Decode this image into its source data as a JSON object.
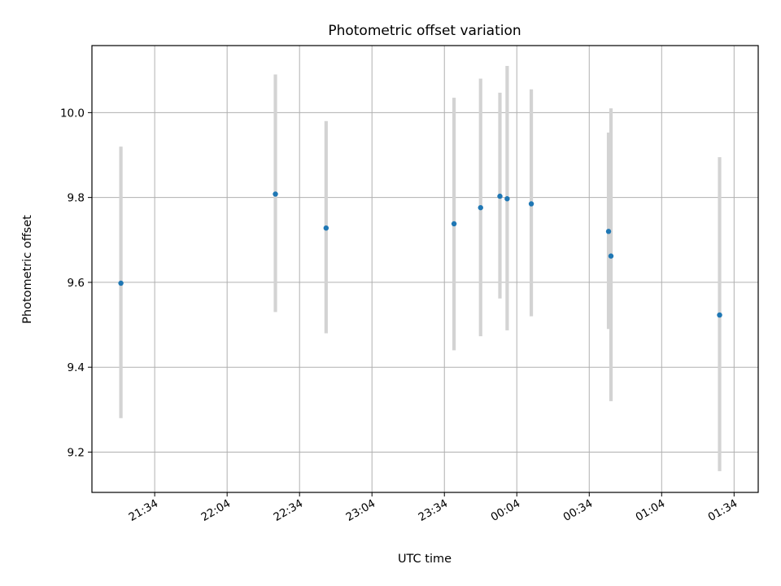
{
  "chart_data": {
    "type": "scatter",
    "title": "Photometric offset variation",
    "xlabel": "UTC time",
    "ylabel": "Photometric offset",
    "x_is_time": true,
    "xlim": [
      "21:08",
      "01:44"
    ],
    "ylim": [
      9.105,
      10.158
    ],
    "x_ticks": [
      "21:34",
      "22:04",
      "22:34",
      "23:04",
      "23:34",
      "00:04",
      "00:34",
      "01:04",
      "01:34"
    ],
    "y_ticks": [
      9.2,
      9.4,
      9.6,
      9.8,
      10.0
    ],
    "y_tick_labels": [
      "9.2",
      "9.4",
      "9.6",
      "9.8",
      "10.0"
    ],
    "grid": true,
    "series": [
      {
        "points": [
          {
            "x": "21:20",
            "y": 9.598,
            "ymin": 9.28,
            "ymax": 9.92
          },
          {
            "x": "22:24",
            "y": 9.808,
            "ymin": 9.53,
            "ymax": 10.09
          },
          {
            "x": "22:45",
            "y": 9.728,
            "ymin": 9.48,
            "ymax": 9.98
          },
          {
            "x": "23:38",
            "y": 9.738,
            "ymin": 9.44,
            "ymax": 10.035
          },
          {
            "x": "23:49",
            "y": 9.776,
            "ymin": 9.473,
            "ymax": 10.08
          },
          {
            "x": "23:57",
            "y": 9.803,
            "ymin": 9.562,
            "ymax": 10.047
          },
          {
            "x": "00:00",
            "y": 9.797,
            "ymin": 9.487,
            "ymax": 10.11
          },
          {
            "x": "00:10",
            "y": 9.785,
            "ymin": 9.52,
            "ymax": 10.055
          },
          {
            "x": "00:42",
            "y": 9.72,
            "ymin": 9.49,
            "ymax": 9.953
          },
          {
            "x": "00:43",
            "y": 9.662,
            "ymin": 9.32,
            "ymax": 10.01
          },
          {
            "x": "01:28",
            "y": 9.523,
            "ymin": 9.155,
            "ymax": 9.895
          }
        ]
      }
    ],
    "colors": {
      "points": "#1f77b4",
      "error_bars": "#d3d3d3",
      "grid": "#b0b0b0",
      "axes": "#000000"
    }
  }
}
